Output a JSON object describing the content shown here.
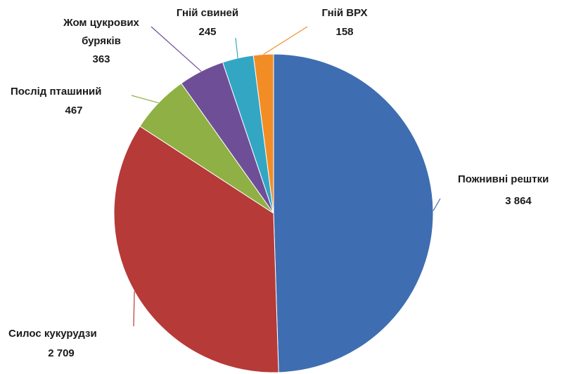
{
  "chart_data": {
    "type": "pie",
    "title": "",
    "slices": [
      {
        "label": "Пожнивні рештки",
        "value": 3864,
        "value_text": "3 864",
        "color": "#3f6db1"
      },
      {
        "label": "Силос кукурудзи",
        "value": 2709,
        "value_text": "2 709",
        "color": "#b63a37"
      },
      {
        "label": "Послід пташиний",
        "value": 467,
        "value_text": "467",
        "color": "#8eb044"
      },
      {
        "label": "Жом цукрових буряків",
        "label_lines": [
          "Жом цукрових",
          "буряків"
        ],
        "value": 363,
        "value_text": "363",
        "color": "#6e4f97"
      },
      {
        "label": "Гній свиней",
        "value": 245,
        "value_text": "245",
        "color": "#33a6c4"
      },
      {
        "label": "Гній ВРХ",
        "value": 158,
        "value_text": "158",
        "color": "#f28d26"
      }
    ]
  }
}
